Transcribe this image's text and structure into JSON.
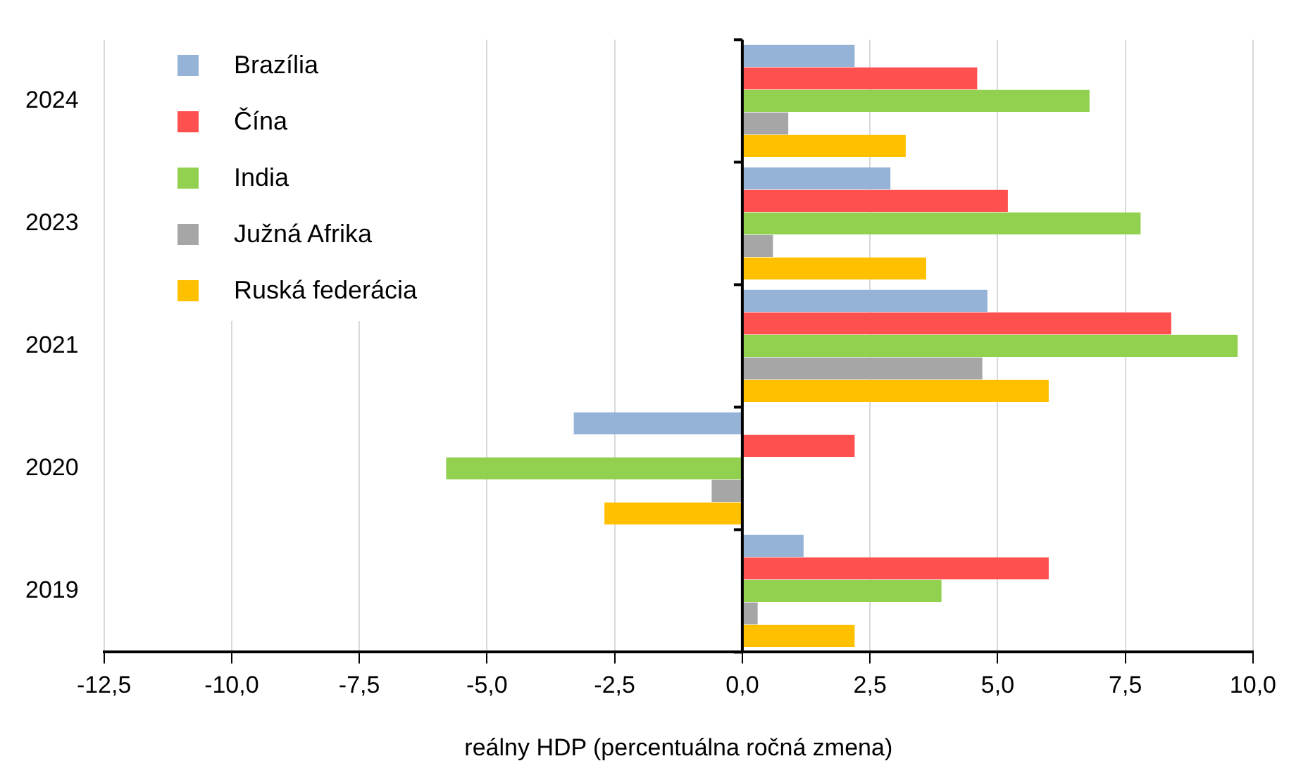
{
  "chart_data": {
    "type": "bar",
    "orientation": "horizontal",
    "xlabel": "reálny HDP (percentuálna ročná zmena)",
    "categories": [
      "2024",
      "2023",
      "2021",
      "2020",
      "2019"
    ],
    "series": [
      {
        "name": "Brazília",
        "color": "#95b3d7",
        "values": [
          2.2,
          2.9,
          4.8,
          -3.3,
          1.2
        ]
      },
      {
        "name": "Čína",
        "color": "#ff5050",
        "values": [
          4.6,
          5.2,
          8.4,
          2.2,
          6.0
        ]
      },
      {
        "name": "India",
        "color": "#92d050",
        "values": [
          6.8,
          7.8,
          9.7,
          -5.8,
          3.9
        ]
      },
      {
        "name": "Južná Afrika",
        "color": "#a6a6a6",
        "values": [
          0.9,
          0.6,
          4.7,
          -0.6,
          0.3
        ]
      },
      {
        "name": "Ruská federácia",
        "color": "#ffc000",
        "values": [
          3.2,
          3.6,
          6.0,
          -2.7,
          2.2
        ]
      }
    ],
    "xlim": [
      -12.5,
      10
    ],
    "xticks": [
      {
        "value": -12.5,
        "label": "-12,5"
      },
      {
        "value": -10,
        "label": "-10,0"
      },
      {
        "value": -7.5,
        "label": "-7,5"
      },
      {
        "value": -5,
        "label": "-5,0"
      },
      {
        "value": -2.5,
        "label": "-2,5"
      },
      {
        "value": 0,
        "label": "0,0"
      },
      {
        "value": 2.5,
        "label": "2,5"
      },
      {
        "value": 5,
        "label": "5,0"
      },
      {
        "value": 7.5,
        "label": "7,5"
      },
      {
        "value": 10,
        "label": "10,0"
      }
    ],
    "grid": "x",
    "legend": "top left"
  }
}
